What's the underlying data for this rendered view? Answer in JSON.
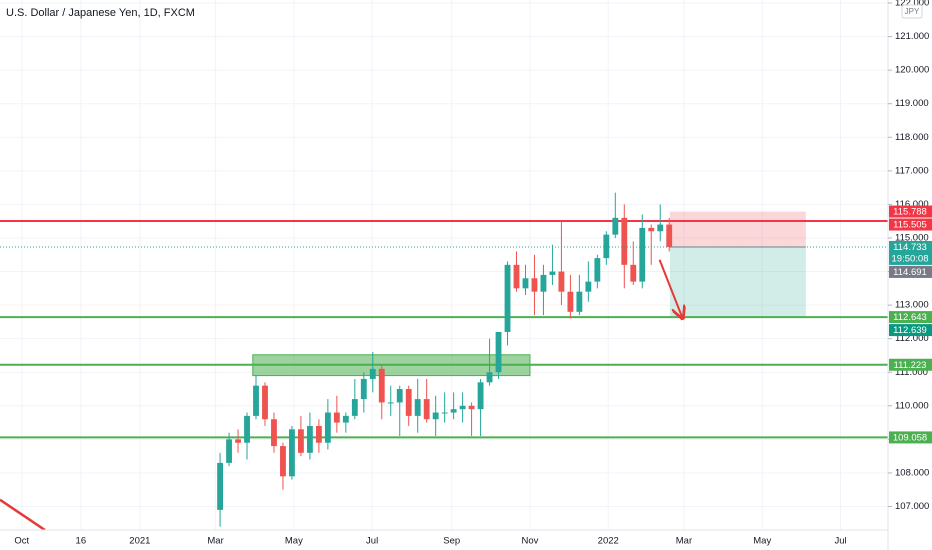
{
  "chart_data": {
    "type": "candlestick",
    "title": "U.S. Dollar / Japanese Yen, 1D, FXCM",
    "currency": "JPY",
    "up_color": "#26a69a",
    "down_color": "#ef5350",
    "grid": true,
    "xlim": [
      "2020-09-14",
      "2022-08-07"
    ],
    "xticks": [
      {
        "value": "2020-10-01",
        "label": "Oct"
      },
      {
        "value": "2020-11-16",
        "label": "16"
      },
      {
        "value": "2021-01-01",
        "label": "2021"
      },
      {
        "value": "2021-03-01",
        "label": "Mar"
      },
      {
        "value": "2021-05-01",
        "label": "May"
      },
      {
        "value": "2021-07-01",
        "label": "Jul"
      },
      {
        "value": "2021-09-01",
        "label": "Sep"
      },
      {
        "value": "2021-11-01",
        "label": "Nov"
      },
      {
        "value": "2022-01-01",
        "label": "2022"
      },
      {
        "value": "2022-03-01",
        "label": "Mar"
      },
      {
        "value": "2022-05-01",
        "label": "May"
      },
      {
        "value": "2022-07-01",
        "label": "Jul"
      }
    ],
    "ylim": [
      106.3,
      122.09
    ],
    "yticks": [
      {
        "value": 107,
        "label": "107.000"
      },
      {
        "value": 108,
        "label": "108.000"
      },
      {
        "value": 109,
        "label": "109.000"
      },
      {
        "value": 110,
        "label": "110.000"
      },
      {
        "value": 111,
        "label": "111.000"
      },
      {
        "value": 112,
        "label": "112.000"
      },
      {
        "value": 113,
        "label": "113.000"
      },
      {
        "value": 114,
        "label": "114.000"
      },
      {
        "value": 115,
        "label": "115.000"
      },
      {
        "value": 116,
        "label": "116.000"
      },
      {
        "value": 117,
        "label": "117.000"
      },
      {
        "value": 118,
        "label": "118.000"
      },
      {
        "value": 119,
        "label": "119.000"
      },
      {
        "value": 120,
        "label": "120.000"
      },
      {
        "value": 121,
        "label": "121.000"
      },
      {
        "value": 122,
        "label": "122.000"
      }
    ],
    "x": [
      "2021-03-01",
      "2021-03-08",
      "2021-03-15",
      "2021-03-22",
      "2021-03-29",
      "2021-04-05",
      "2021-04-12",
      "2021-04-19",
      "2021-04-26",
      "2021-05-03",
      "2021-05-10",
      "2021-05-17",
      "2021-05-24",
      "2021-05-31",
      "2021-06-07",
      "2021-06-14",
      "2021-06-21",
      "2021-06-28",
      "2021-07-05",
      "2021-07-12",
      "2021-07-19",
      "2021-07-26",
      "2021-08-02",
      "2021-08-09",
      "2021-08-16",
      "2021-08-23",
      "2021-08-30",
      "2021-09-06",
      "2021-09-13",
      "2021-09-20",
      "2021-09-27",
      "2021-10-04",
      "2021-10-11",
      "2021-10-18",
      "2021-10-25",
      "2021-11-01",
      "2021-11-08",
      "2021-11-15",
      "2021-11-22",
      "2021-11-29",
      "2021-12-06",
      "2021-12-13",
      "2021-12-20",
      "2021-12-27",
      "2022-01-03",
      "2022-01-10",
      "2022-01-17",
      "2022-01-24",
      "2022-01-31",
      "2022-02-07",
      "2022-02-14"
    ],
    "open": [
      106.9,
      108.3,
      109.0,
      108.9,
      109.7,
      110.6,
      109.6,
      108.8,
      107.9,
      109.3,
      108.6,
      109.4,
      108.9,
      109.8,
      109.5,
      109.7,
      110.2,
      110.8,
      111.1,
      110.1,
      110.1,
      110.5,
      109.7,
      110.2,
      109.6,
      109.8,
      109.8,
      109.9,
      110.0,
      109.9,
      110.7,
      111.0,
      112.2,
      114.2,
      113.5,
      113.8,
      113.4,
      113.9,
      114.0,
      113.4,
      112.8,
      113.4,
      113.7,
      114.4,
      115.1,
      115.6,
      114.2,
      113.7,
      115.3,
      115.2,
      115.4
    ],
    "high": [
      108.6,
      109.2,
      109.3,
      109.8,
      110.9,
      110.7,
      109.8,
      108.9,
      109.4,
      109.7,
      109.8,
      109.6,
      110.2,
      110.3,
      109.8,
      110.8,
      111.0,
      111.6,
      111.2,
      110.6,
      110.6,
      110.6,
      110.8,
      110.8,
      110.3,
      110.4,
      110.4,
      110.4,
      110.1,
      110.8,
      112.0,
      112.2,
      114.3,
      114.6,
      114.2,
      114.5,
      114.2,
      114.8,
      115.5,
      113.9,
      113.9,
      114.3,
      114.5,
      115.2,
      116.35,
      116.0,
      114.9,
      115.7,
      115.4,
      116.0,
      115.6
    ],
    "low": [
      106.4,
      108.2,
      108.6,
      108.4,
      109.6,
      109.4,
      108.6,
      107.5,
      107.8,
      108.5,
      108.4,
      108.6,
      108.7,
      109.2,
      109.2,
      109.6,
      109.8,
      110.4,
      109.6,
      109.7,
      109.1,
      109.4,
      109.2,
      109.5,
      109.1,
      109.5,
      109.6,
      109.5,
      109.1,
      109.1,
      110.6,
      110.8,
      111.8,
      113.4,
      113.3,
      112.7,
      112.7,
      113.6,
      113.0,
      112.6,
      112.7,
      113.1,
      113.5,
      114.2,
      115.0,
      113.5,
      113.6,
      113.5,
      114.2,
      114.9,
      114.6
    ],
    "close": [
      108.3,
      109.0,
      108.9,
      109.7,
      110.6,
      109.6,
      108.8,
      107.9,
      109.3,
      108.6,
      109.4,
      108.9,
      109.8,
      109.5,
      109.7,
      110.2,
      110.8,
      111.1,
      110.1,
      110.1,
      110.5,
      109.7,
      110.2,
      109.6,
      109.8,
      109.8,
      109.9,
      110.0,
      109.9,
      110.7,
      111.0,
      112.2,
      114.2,
      113.5,
      113.8,
      113.4,
      113.9,
      114.0,
      113.4,
      112.8,
      113.4,
      113.7,
      114.4,
      115.1,
      115.6,
      114.2,
      113.7,
      115.3,
      115.2,
      115.4,
      114.733
    ],
    "levels": [
      {
        "value": 115.505,
        "color": "#f23645"
      },
      {
        "value": 112.643,
        "color": "#4caf50"
      },
      {
        "value": 111.223,
        "color": "#4caf50"
      },
      {
        "value": 109.058,
        "color": "#4caf50"
      }
    ],
    "zone": {
      "x": [
        "2021-03-30",
        "2021-11-01"
      ],
      "y": [
        110.9,
        111.52
      ],
      "color": "#4caf50"
    },
    "position": {
      "start": "2022-02-18",
      "end": "2022-06-04",
      "entry": 114.733,
      "stop": 115.788,
      "target": 112.639,
      "stop_color": "#f23645",
      "target_color": "#089981"
    },
    "countdown": "19:50:08",
    "marker_price": 114.691,
    "marker_color": "#787b86",
    "arrow": {
      "from": [
        "2022-02-10",
        114.35
      ],
      "to": [
        "2022-02-28",
        112.6
      ],
      "color": "#e53935"
    },
    "trendline": {
      "from": [
        "2020-09-14",
        107.2
      ],
      "to": [
        "2020-10-19",
        106.3
      ],
      "color": "#e53935"
    }
  }
}
